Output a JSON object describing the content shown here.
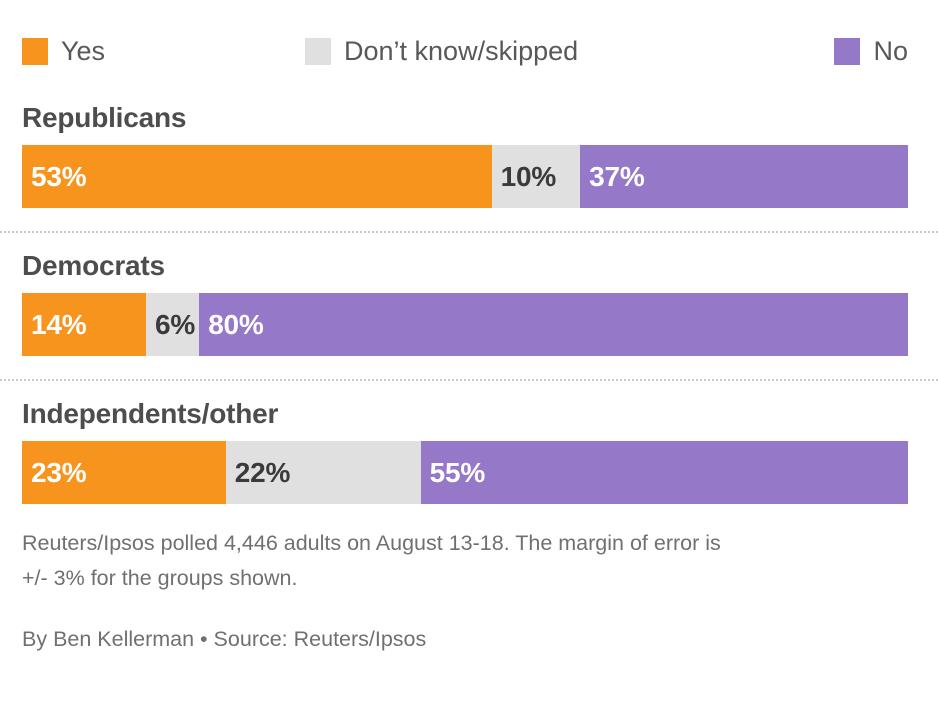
{
  "legend": {
    "items": [
      {
        "label": "Yes",
        "color": "#F7941E"
      },
      {
        "label": "Don’t know/skipped",
        "color": "#E0E0E0"
      },
      {
        "label": "No",
        "color": "#9678C8"
      }
    ]
  },
  "chart_data": {
    "type": "bar",
    "variant": "horizontal-stacked",
    "unit": "percent",
    "xlim": [
      0,
      100
    ],
    "data_labels": true,
    "categories": [
      "Republicans",
      "Democrats",
      "Independents/other"
    ],
    "series": [
      {
        "name": "Yes",
        "color": "#F7941E",
        "label_color": "#FFFFFF",
        "values": [
          53,
          14,
          23
        ]
      },
      {
        "name": "Don’t know/skipped",
        "color": "#E0E0E0",
        "label_color": "#3A3A3B",
        "values": [
          10,
          6,
          22
        ]
      },
      {
        "name": "No",
        "color": "#9678C8",
        "label_color": "#FFFFFF",
        "values": [
          37,
          80,
          55
        ]
      }
    ]
  },
  "footnote": {
    "line1": "Reuters/Ipsos polled 4,446 adults on August 13-18. The margin of error is",
    "line2": "+/- 3% for the groups shown."
  },
  "byline": "By Ben Kellerman • Source: Reuters/Ipsos"
}
